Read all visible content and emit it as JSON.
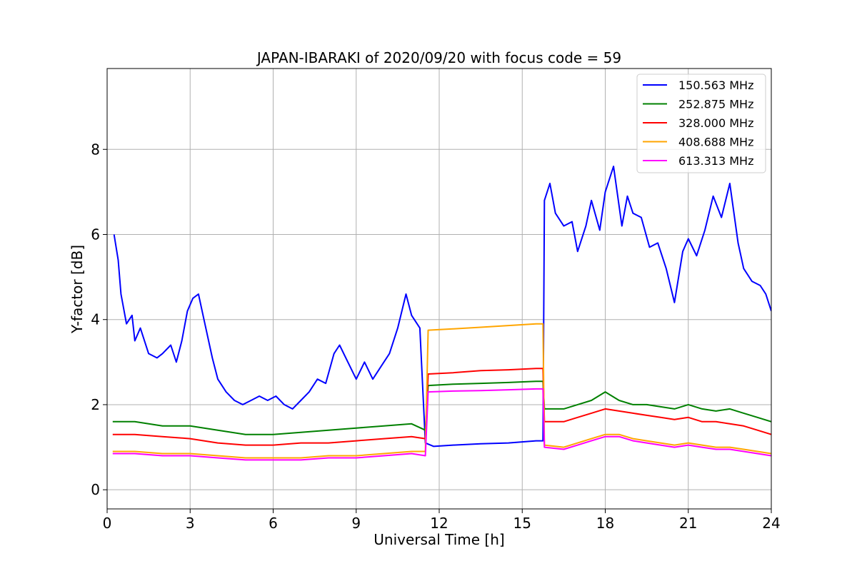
{
  "chart_data": {
    "type": "line",
    "title": "JAPAN-IBARAKI of 2020/09/20 with focus code = 59",
    "xlabel": "Universal Time [h]",
    "ylabel": "Y-factor [dB]",
    "xlim": [
      0,
      24
    ],
    "ylim": [
      -0.45,
      9.9
    ],
    "xticks": [
      0,
      3,
      6,
      9,
      12,
      15,
      18,
      21,
      24
    ],
    "yticks": [
      0,
      2,
      4,
      6,
      8
    ],
    "grid": true,
    "legend_position": "top-right",
    "series": [
      {
        "name": "150.563 MHz",
        "color": "#0000ff",
        "x": [
          0.25,
          0.4,
          0.5,
          0.7,
          0.9,
          1.0,
          1.2,
          1.5,
          1.8,
          2.0,
          2.3,
          2.5,
          2.7,
          2.9,
          3.1,
          3.3,
          3.5,
          3.8,
          4.0,
          4.3,
          4.6,
          4.9,
          5.2,
          5.5,
          5.8,
          6.1,
          6.4,
          6.7,
          7.0,
          7.3,
          7.6,
          7.9,
          8.2,
          8.4,
          8.7,
          9.0,
          9.3,
          9.6,
          9.9,
          10.2,
          10.5,
          10.8,
          11.0,
          11.3,
          11.5,
          11.8,
          12.5,
          13.5,
          14.5,
          15.5,
          15.75,
          15.8,
          16.0,
          16.2,
          16.5,
          16.8,
          17.0,
          17.3,
          17.5,
          17.8,
          18.0,
          18.3,
          18.6,
          18.8,
          19.0,
          19.3,
          19.6,
          19.9,
          20.2,
          20.5,
          20.8,
          21.0,
          21.3,
          21.6,
          21.9,
          22.2,
          22.5,
          22.8,
          23.0,
          23.3,
          23.6,
          23.8,
          24.0
        ],
        "y": [
          6.0,
          5.4,
          4.6,
          3.9,
          4.1,
          3.5,
          3.8,
          3.2,
          3.1,
          3.2,
          3.4,
          3.0,
          3.5,
          4.2,
          4.5,
          4.6,
          4.0,
          3.1,
          2.6,
          2.3,
          2.1,
          2.0,
          2.1,
          2.2,
          2.1,
          2.2,
          2.0,
          1.9,
          2.1,
          2.3,
          2.6,
          2.5,
          3.2,
          3.4,
          3.0,
          2.6,
          3.0,
          2.6,
          2.9,
          3.2,
          3.8,
          4.6,
          4.1,
          3.8,
          1.1,
          1.02,
          1.05,
          1.08,
          1.1,
          1.15,
          1.15,
          6.8,
          7.2,
          6.5,
          6.2,
          6.3,
          5.6,
          6.2,
          6.8,
          6.1,
          7.0,
          7.6,
          6.2,
          6.9,
          6.5,
          6.4,
          5.7,
          5.8,
          5.2,
          4.4,
          5.6,
          5.9,
          5.5,
          6.1,
          6.9,
          6.4,
          7.2,
          5.8,
          5.2,
          4.9,
          4.8,
          4.6,
          4.2
        ]
      },
      {
        "name": "252.875 MHz",
        "color": "#008000",
        "x": [
          0.2,
          1.0,
          2.0,
          3.0,
          4.0,
          5.0,
          6.0,
          7.0,
          8.0,
          9.0,
          10.0,
          11.0,
          11.5,
          11.6,
          12.5,
          13.5,
          14.5,
          15.5,
          15.75,
          15.8,
          16.5,
          17.0,
          17.5,
          18.0,
          18.5,
          19.0,
          19.5,
          20.0,
          20.5,
          21.0,
          21.5,
          22.0,
          22.5,
          23.0,
          23.5,
          24.0
        ],
        "y": [
          1.6,
          1.6,
          1.5,
          1.5,
          1.4,
          1.3,
          1.3,
          1.35,
          1.4,
          1.45,
          1.5,
          1.55,
          1.4,
          2.45,
          2.48,
          2.5,
          2.52,
          2.55,
          2.55,
          1.9,
          1.9,
          2.0,
          2.1,
          2.3,
          2.1,
          2.0,
          2.0,
          1.95,
          1.9,
          2.0,
          1.9,
          1.85,
          1.9,
          1.8,
          1.7,
          1.6
        ]
      },
      {
        "name": "328.000 MHz",
        "color": "#ff0000",
        "x": [
          0.2,
          1.0,
          2.0,
          3.0,
          4.0,
          5.0,
          6.0,
          7.0,
          8.0,
          9.0,
          10.0,
          11.0,
          11.5,
          11.6,
          12.5,
          13.5,
          14.5,
          15.5,
          15.75,
          15.8,
          16.5,
          17.0,
          17.5,
          18.0,
          18.5,
          19.0,
          19.5,
          20.0,
          20.5,
          21.0,
          21.5,
          22.0,
          22.5,
          23.0,
          23.5,
          24.0
        ],
        "y": [
          1.3,
          1.3,
          1.25,
          1.2,
          1.1,
          1.05,
          1.05,
          1.1,
          1.1,
          1.15,
          1.2,
          1.25,
          1.2,
          2.72,
          2.75,
          2.8,
          2.82,
          2.85,
          2.85,
          1.6,
          1.6,
          1.7,
          1.8,
          1.9,
          1.85,
          1.8,
          1.75,
          1.7,
          1.65,
          1.7,
          1.6,
          1.6,
          1.55,
          1.5,
          1.4,
          1.3
        ]
      },
      {
        "name": "408.688 MHz",
        "color": "#ffa500",
        "x": [
          0.2,
          1.0,
          2.0,
          3.0,
          4.0,
          5.0,
          6.0,
          7.0,
          8.0,
          9.0,
          10.0,
          11.0,
          11.5,
          11.6,
          12.5,
          13.5,
          14.5,
          15.5,
          15.75,
          15.8,
          16.5,
          17.0,
          17.5,
          18.0,
          18.5,
          19.0,
          19.5,
          20.0,
          20.5,
          21.0,
          21.5,
          22.0,
          22.5,
          23.0,
          23.5,
          24.0
        ],
        "y": [
          0.9,
          0.9,
          0.85,
          0.85,
          0.8,
          0.75,
          0.75,
          0.75,
          0.8,
          0.8,
          0.85,
          0.9,
          0.9,
          3.75,
          3.78,
          3.82,
          3.86,
          3.9,
          3.9,
          1.05,
          1.0,
          1.1,
          1.2,
          1.3,
          1.3,
          1.2,
          1.15,
          1.1,
          1.05,
          1.1,
          1.05,
          1.0,
          1.0,
          0.95,
          0.9,
          0.85
        ]
      },
      {
        "name": "613.313 MHz",
        "color": "#ff00ff",
        "x": [
          0.2,
          1.0,
          2.0,
          3.0,
          4.0,
          5.0,
          6.0,
          7.0,
          8.0,
          9.0,
          10.0,
          11.0,
          11.5,
          11.6,
          12.5,
          13.5,
          14.5,
          15.5,
          15.75,
          15.8,
          16.5,
          17.0,
          17.5,
          18.0,
          18.5,
          19.0,
          19.5,
          20.0,
          20.5,
          21.0,
          21.5,
          22.0,
          22.5,
          23.0,
          23.5,
          24.0
        ],
        "y": [
          0.85,
          0.85,
          0.8,
          0.8,
          0.75,
          0.7,
          0.7,
          0.7,
          0.75,
          0.75,
          0.8,
          0.85,
          0.8,
          2.3,
          2.32,
          2.33,
          2.35,
          2.37,
          2.37,
          1.0,
          0.95,
          1.05,
          1.15,
          1.25,
          1.25,
          1.15,
          1.1,
          1.05,
          1.0,
          1.05,
          1.0,
          0.95,
          0.95,
          0.9,
          0.85,
          0.8
        ]
      }
    ]
  }
}
